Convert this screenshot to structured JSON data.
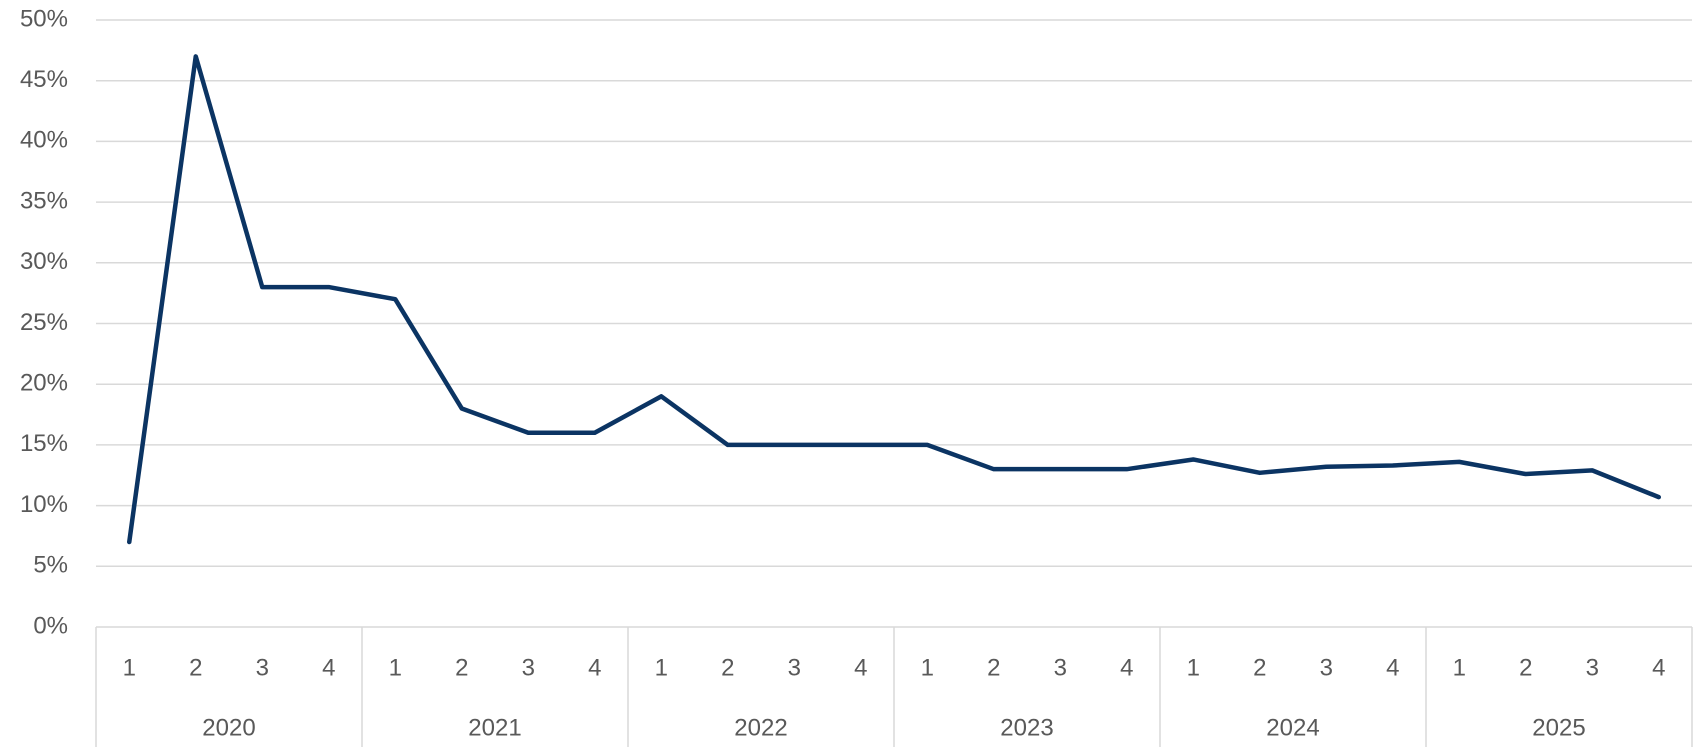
{
  "chart_data": {
    "type": "line",
    "categories": [
      "1",
      "2",
      "3",
      "4",
      "1",
      "2",
      "3",
      "4",
      "1",
      "2",
      "3",
      "4",
      "1",
      "2",
      "3",
      "4",
      "1",
      "2",
      "3",
      "4",
      "1",
      "2",
      "3",
      "4"
    ],
    "groups": [
      "2020",
      "2021",
      "2022",
      "2023",
      "2024",
      "2025"
    ],
    "values": [
      7,
      47,
      28,
      28,
      27,
      18,
      16,
      16,
      19,
      15,
      15,
      15,
      15,
      13,
      13,
      13,
      13.8,
      12.7,
      13.2,
      13.3,
      13.6,
      12.6,
      12.9,
      10.7
    ],
    "color": "#0b3463",
    "ylim": [
      0,
      50
    ],
    "yticks": [
      {
        "value": 0,
        "label": "0%"
      },
      {
        "value": 5,
        "label": "5%"
      },
      {
        "value": 10,
        "label": "10%"
      },
      {
        "value": 15,
        "label": "15%"
      },
      {
        "value": 20,
        "label": "20%"
      },
      {
        "value": 25,
        "label": "25%"
      },
      {
        "value": 30,
        "label": "30%"
      },
      {
        "value": 35,
        "label": "35%"
      },
      {
        "value": 40,
        "label": "40%"
      },
      {
        "value": 45,
        "label": "45%"
      },
      {
        "value": 50,
        "label": "50%"
      }
    ],
    "grid": true
  }
}
